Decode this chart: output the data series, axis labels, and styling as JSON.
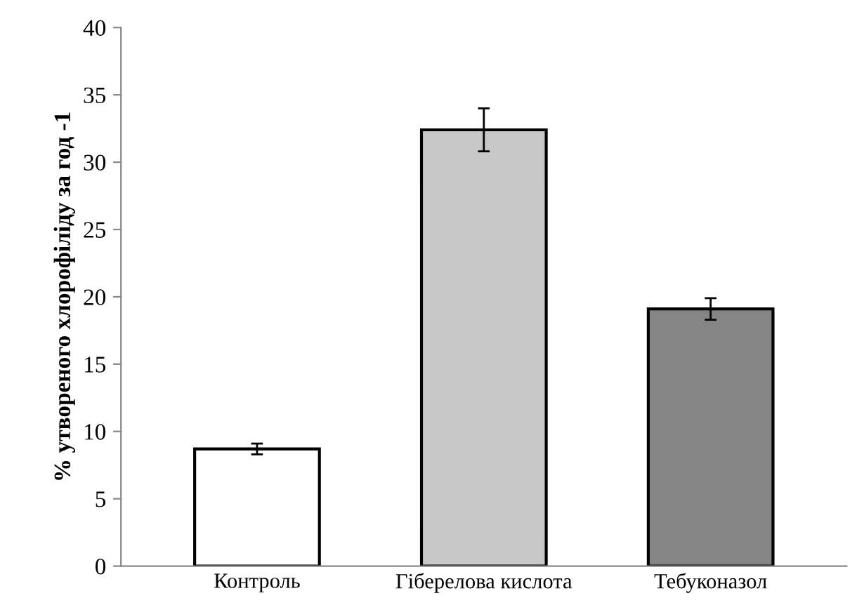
{
  "chart_data": {
    "type": "bar",
    "ylabel": "% утвореного хлорофіліду за год -1",
    "categories": [
      "Контроль",
      "Гіберелова кислота",
      "Тебуконазол"
    ],
    "values": [
      8.7,
      32.4,
      19.1
    ],
    "colors": [
      "#ffffff",
      "#c8c8c8",
      "#858585"
    ],
    "errors": [
      0.4,
      1.6,
      0.8
    ],
    "ylim": [
      0,
      40
    ],
    "yticks": [
      0,
      5,
      10,
      15,
      20,
      25,
      30,
      35,
      40
    ],
    "grid": false,
    "legend": false
  }
}
